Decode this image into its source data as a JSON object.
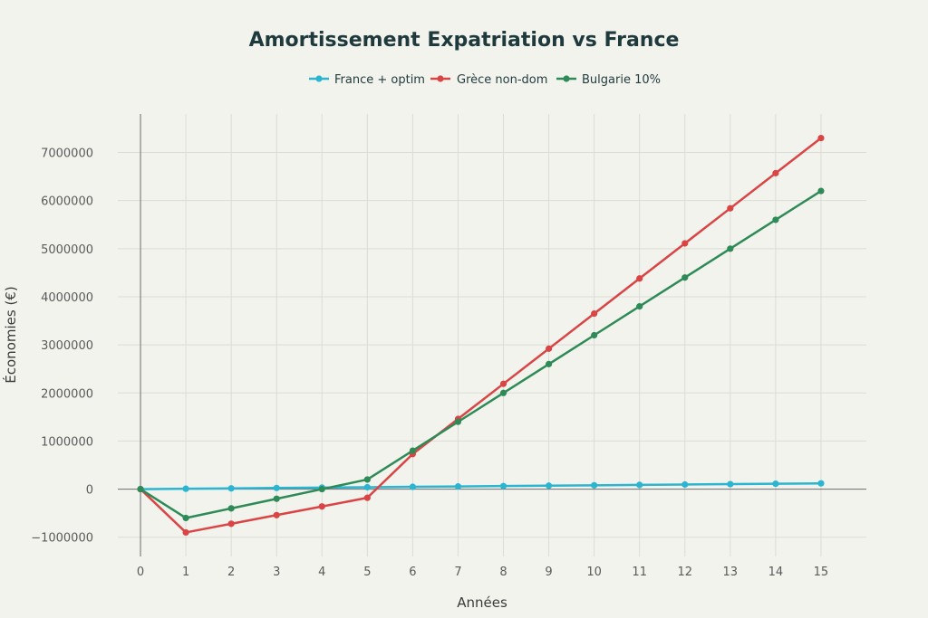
{
  "chart_data": {
    "type": "line",
    "title": "Amortissement Expatriation vs France",
    "xlabel": "Années",
    "ylabel": "Économies (€)",
    "x": [
      0,
      1,
      2,
      3,
      4,
      5,
      6,
      7,
      8,
      9,
      10,
      11,
      12,
      13,
      14,
      15
    ],
    "xlim": [
      -0.5,
      16
    ],
    "ylim": [
      -1400000,
      7800000
    ],
    "yticks": [
      -1000000,
      0,
      1000000,
      2000000,
      3000000,
      4000000,
      5000000,
      6000000,
      7000000
    ],
    "ytick_labels": [
      "−1000000",
      "0",
      "1000000",
      "2000000",
      "3000000",
      "4000000",
      "5000000",
      "6000000",
      "7000000"
    ],
    "xtick_labels": [
      "0",
      "1",
      "2",
      "3",
      "4",
      "5",
      "6",
      "7",
      "8",
      "9",
      "10",
      "11",
      "12",
      "13",
      "14",
      "15"
    ],
    "grid": true,
    "legend_position": "top-center",
    "series": [
      {
        "name": "France + optim",
        "color": "#2bb5d0",
        "values": [
          0,
          8000,
          16000,
          24000,
          32000,
          40000,
          48000,
          56000,
          64000,
          72000,
          80000,
          88000,
          96000,
          104000,
          112000,
          120000
        ]
      },
      {
        "name": "Grèce non-dom",
        "color": "#d94545",
        "values": [
          0,
          -900000,
          -720000,
          -540000,
          -360000,
          -180000,
          730000,
          1460000,
          2190000,
          2920000,
          3650000,
          4380000,
          5110000,
          5840000,
          6570000,
          7300000
        ]
      },
      {
        "name": "Bulgarie 10%",
        "color": "#2e8b57",
        "values": [
          0,
          -600000,
          -400000,
          -200000,
          0,
          200000,
          800000,
          1400000,
          2000000,
          2600000,
          3200000,
          3800000,
          4400000,
          5000000,
          5600000,
          6200000
        ]
      }
    ]
  }
}
